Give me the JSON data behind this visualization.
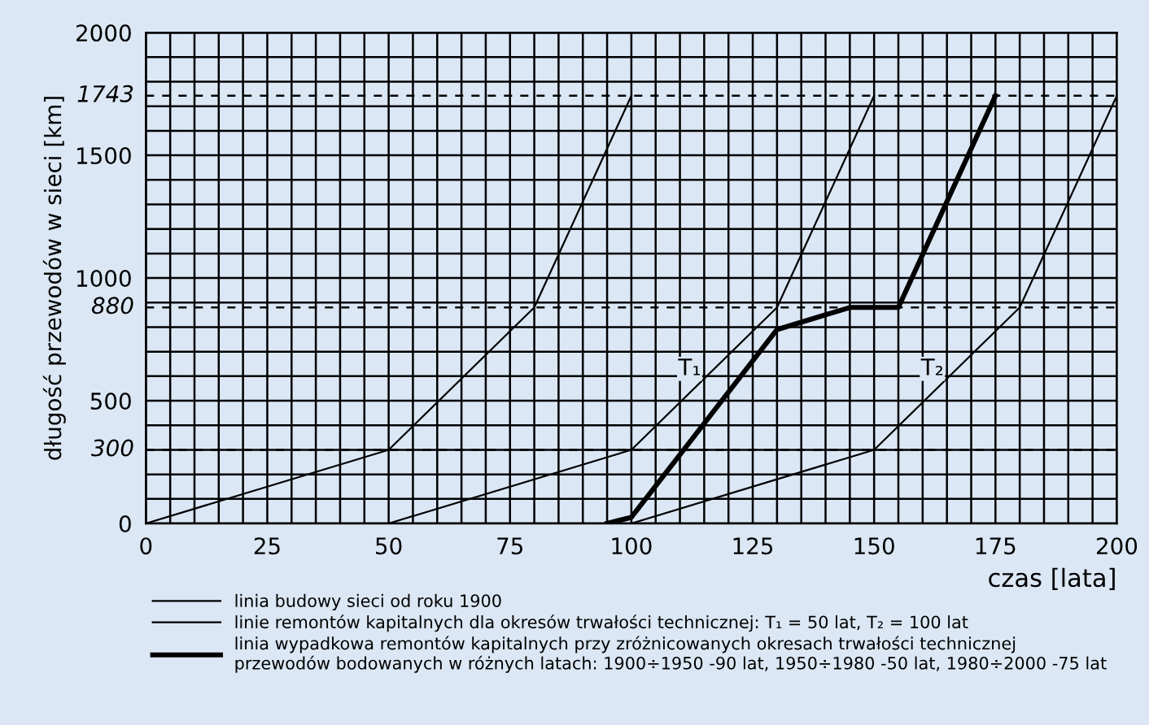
{
  "chart_data": {
    "type": "line",
    "xlabel": "czas [lata]",
    "ylabel": "długość przewodów w sieci [km]",
    "xlim": [
      0,
      200
    ],
    "ylim": [
      0,
      2000
    ],
    "xticks": [
      0,
      {
        "value": 5,
        "label": null
      },
      {
        "value": 10,
        "label": null
      },
      {
        "value": 15,
        "label": null
      },
      {
        "value": 20,
        "label": null
      },
      25,
      {
        "value": 30,
        "label": null
      },
      {
        "value": 35,
        "label": null
      },
      {
        "value": 40,
        "label": null
      },
      {
        "value": 45,
        "label": null
      },
      50,
      {
        "value": 55,
        "label": null
      },
      {
        "value": 60,
        "label": null
      },
      {
        "value": 65,
        "label": null
      },
      {
        "value": 70,
        "label": null
      },
      75,
      {
        "value": 80,
        "label": null
      },
      {
        "value": 85,
        "label": null
      },
      {
        "value": 90,
        "label": null
      },
      {
        "value": 95,
        "label": null
      },
      100,
      {
        "value": 105,
        "label": null
      },
      {
        "value": 110,
        "label": null
      },
      {
        "value": 115,
        "label": null
      },
      {
        "value": 120,
        "label": null
      },
      125,
      {
        "value": 130,
        "label": null
      },
      {
        "value": 135,
        "label": null
      },
      {
        "value": 140,
        "label": null
      },
      {
        "value": 145,
        "label": null
      },
      150,
      {
        "value": 155,
        "label": null
      },
      {
        "value": 160,
        "label": null
      },
      {
        "value": 165,
        "label": null
      },
      {
        "value": 170,
        "label": null
      },
      175,
      {
        "value": 180,
        "label": null
      },
      {
        "value": 185,
        "label": null
      },
      {
        "value": 190,
        "label": null
      },
      {
        "value": 195,
        "label": null
      },
      200
    ],
    "yticks": [
      0,
      {
        "value": 100,
        "label": null
      },
      {
        "value": 200,
        "label": null
      },
      {
        "value": 300,
        "label": null
      },
      {
        "value": 400,
        "label": null
      },
      500,
      {
        "value": 600,
        "label": null
      },
      {
        "value": 700,
        "label": null
      },
      {
        "value": 800,
        "label": null
      },
      {
        "value": 900,
        "label": null
      },
      1000,
      {
        "value": 1100,
        "label": null
      },
      {
        "value": 1200,
        "label": null
      },
      {
        "value": 1300,
        "label": null
      },
      {
        "value": 1400,
        "label": null
      },
      1500,
      {
        "value": 1600,
        "label": null
      },
      {
        "value": 1700,
        "label": null
      },
      {
        "value": 1800,
        "label": null
      },
      {
        "value": 1900,
        "label": null
      },
      2000
    ],
    "grid": true,
    "legend": "bottom",
    "series": [
      {
        "name": "linia budowy sieci od roku 1900",
        "color": "#000000",
        "x": [
          0,
          50,
          80,
          100
        ],
        "values": [
          0,
          300,
          880,
          1743
        ]
      },
      {
        "name": "linie remontów kapitalnych dla okresów trwałości technicznej: T₁ = 50 lat, T₂ = 100 lat",
        "color": "#000000",
        "x": [
          50,
          100,
          130,
          150
        ],
        "values": [
          0,
          300,
          880,
          1743
        ]
      },
      {
        "color": "#000000",
        "x": [
          100,
          150,
          180,
          200
        ],
        "values": [
          0,
          300,
          880,
          1743
        ]
      },
      {
        "name": "linia wypadkowa remontów kapitalnych przy zróżnicowanych okresach trwałości technicznej\nprzewodów bodowanych w różnych latach: 1900÷1950 -90 lat, 1950÷1980 -50 lat, 1980÷2000 -75 lat",
        "color": "#000000",
        "x": [
          95,
          100,
          130,
          145,
          155,
          175
        ],
        "values": [
          0,
          25,
          790,
          880,
          880,
          1743
        ]
      }
    ],
    "ref_lines": [
      {
        "axis": "y",
        "value": 300,
        "label": "300",
        "line_style": "dashed"
      },
      {
        "axis": "y",
        "value": 880,
        "label": "880",
        "line_style": "dashed"
      },
      {
        "axis": "y",
        "value": 1743,
        "label": "1743",
        "line_style": "dashed"
      }
    ],
    "annotations": [
      {
        "text": "T₁",
        "x": 112,
        "y": 630
      },
      {
        "text": "T₂",
        "x": 162,
        "y": 630
      }
    ]
  }
}
